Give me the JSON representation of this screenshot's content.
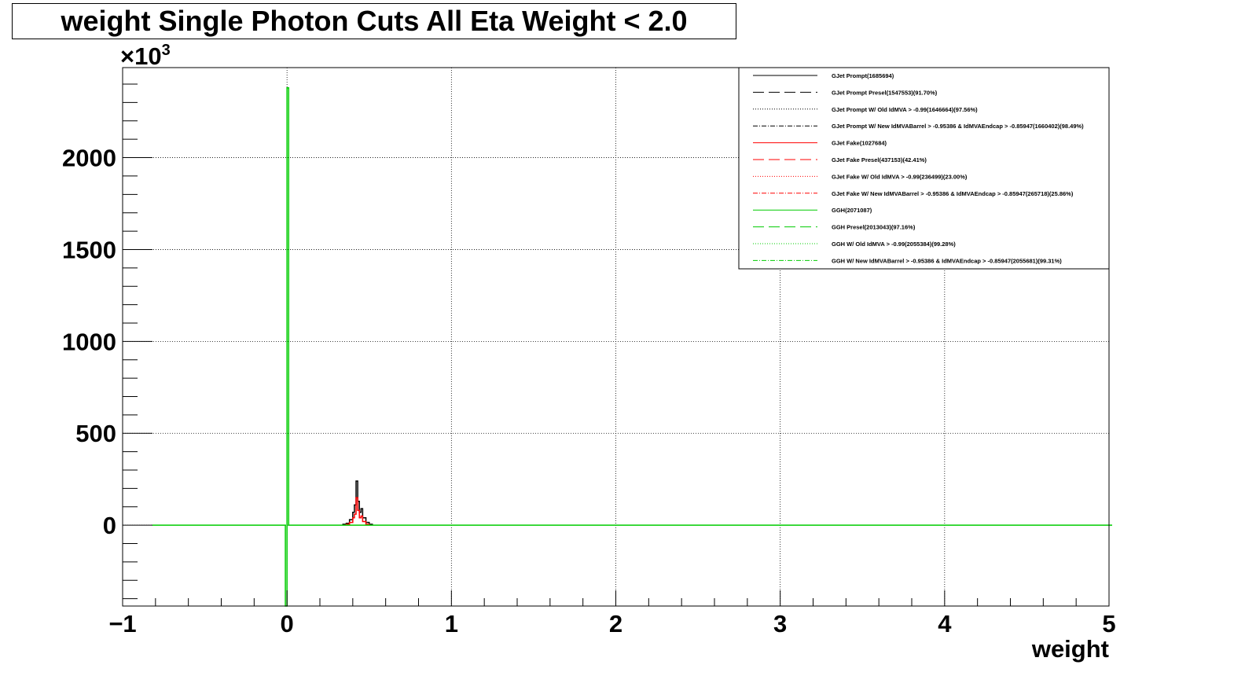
{
  "chart_data": {
    "type": "line",
    "title": "weight Single Photon Cuts All Eta Weight < 2.0",
    "xlabel": "weight",
    "ylabel": "",
    "y_multiplier": "×10",
    "y_multiplier_exp": "3",
    "xlim": [
      -1,
      5
    ],
    "ylim": [
      -440,
      2490
    ],
    "x_ticks": [
      -1,
      0,
      1,
      2,
      3,
      4,
      5
    ],
    "x_tick_labels": [
      "−1",
      "0",
      "1",
      "2",
      "3",
      "4",
      "5"
    ],
    "y_ticks": [
      0,
      500,
      1000,
      1500,
      2000
    ],
    "y_tick_labels": [
      "0",
      "500",
      "1000",
      "1500",
      "2000"
    ],
    "grid": true,
    "legend_position": "top-right",
    "legend": [
      {
        "label": "GJet Prompt(1685694)",
        "color": "#000000",
        "dash": "solid"
      },
      {
        "label": "GJet Prompt Presel(1547553)(91.70%)",
        "color": "#000000",
        "dash": "dashed"
      },
      {
        "label": "GJet Prompt W/ Old IdMVA > -0.99(1646664)(97.56%)",
        "color": "#000000",
        "dash": "dotted"
      },
      {
        "label": "GJet Prompt W/ New IdMVABarrel > -0.95386 & IdMVAEndcap > -0.85947(1660402)(98.49%)",
        "color": "#000000",
        "dash": "dashdot"
      },
      {
        "label": "GJet Fake(1027684)",
        "color": "#ff0000",
        "dash": "solid"
      },
      {
        "label": "GJet Fake Presel(437153)(42.41%)",
        "color": "#ff0000",
        "dash": "dashed"
      },
      {
        "label": "GJet Fake W/ Old IdMVA > -0.99(236499)(23.00%)",
        "color": "#ff0000",
        "dash": "dotted"
      },
      {
        "label": "GJet Fake W/ New IdMVABarrel > -0.95386 & IdMVAEndcap > -0.85947(265718)(25.86%)",
        "color": "#ff0000",
        "dash": "dashdot"
      },
      {
        "label": "GGH(2071087)",
        "color": "#00cc00",
        "dash": "solid"
      },
      {
        "label": "GGH Presel(2013043)(97.16%)",
        "color": "#00cc00",
        "dash": "dashed"
      },
      {
        "label": "GGH W/ Old IdMVA > -0.99(2055384)(99.28%)",
        "color": "#00cc00",
        "dash": "dotted"
      },
      {
        "label": "GGH W/ New IdMVABarrel > -0.95386 & IdMVAEndcap > -0.85947(2055681)(99.31%)",
        "color": "#00cc00",
        "dash": "dashdot"
      }
    ],
    "series": [
      {
        "name": "GJet Prompt(1685694)",
        "color": "#000000",
        "x": [
          0.34,
          0.36,
          0.38,
          0.4,
          0.41,
          0.42,
          0.43,
          0.44,
          0.45,
          0.46,
          0.48,
          0.5
        ],
        "values": [
          5,
          10,
          30,
          70,
          110,
          240,
          130,
          70,
          90,
          40,
          15,
          5
        ]
      },
      {
        "name": "GJet Fake(1027684)",
        "color": "#ff0000",
        "x": [
          0.36,
          0.38,
          0.4,
          0.41,
          0.42,
          0.43,
          0.44,
          0.45,
          0.46,
          0.48
        ],
        "values": [
          5,
          15,
          40,
          60,
          150,
          80,
          40,
          50,
          20,
          5
        ]
      },
      {
        "name": "GGH(2071087)",
        "color": "#00cc00",
        "x": [
          -0.82,
          -0.02,
          -0.01,
          0.0,
          0.01,
          0.02,
          5.0
        ],
        "values": [
          0,
          0,
          -440,
          2380,
          0,
          0,
          0
        ]
      }
    ]
  }
}
